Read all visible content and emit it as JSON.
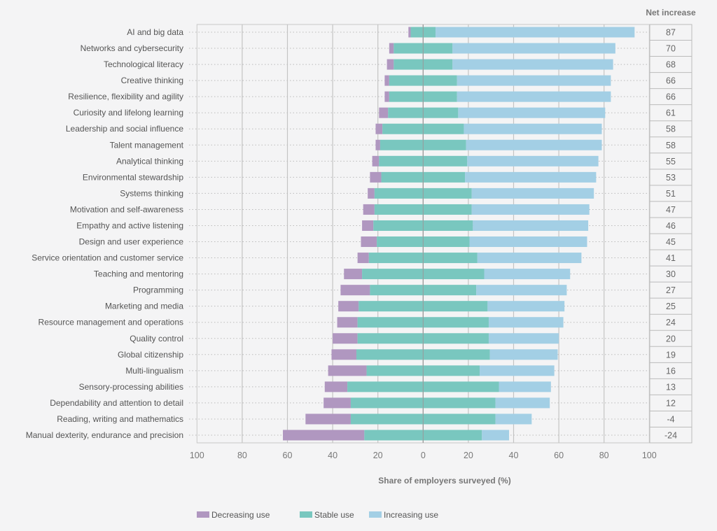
{
  "chart_data": {
    "type": "bar",
    "orientation": "horizontal",
    "stacking": "diverging",
    "xlabel": "Share of employers surveyed (%)",
    "xlim": [
      -100,
      100
    ],
    "xticks": [
      "100",
      "80",
      "60",
      "40",
      "20",
      "0",
      "20",
      "40",
      "60",
      "80",
      "100"
    ],
    "grid": true,
    "legend_position": "bottom",
    "net_header": "Net increase",
    "categories": [
      "AI and big data",
      "Networks and cybersecurity",
      "Technological literacy",
      "Creative thinking",
      "Resilience, flexibility and agility",
      "Curiosity and lifelong learning",
      "Leadership and social influence",
      "Talent management",
      "Analytical thinking",
      "Environmental stewardship",
      "Systems thinking",
      "Motivation and self-awareness",
      "Empathy and active listening",
      "Design and user experience",
      "Service orientation and customer service",
      "Teaching and mentoring",
      "Programming",
      "Marketing and media",
      "Resource management and operations",
      "Quality control",
      "Global citizenship",
      "Multi-lingualism",
      "Sensory-processing abilities",
      "Dependability and attention to detail",
      "Reading, writing and mathematics",
      "Manual dexterity, endurance and precision"
    ],
    "series": [
      {
        "name": "Decreasing use",
        "color": "#b097c0",
        "values": [
          1,
          2,
          3,
          2,
          2,
          4,
          3,
          2,
          3,
          5,
          3,
          5,
          5,
          7,
          5,
          8,
          13,
          9,
          9,
          11,
          11,
          17,
          10,
          12,
          20,
          36
        ]
      },
      {
        "name": "Stable use",
        "color": "#79c7bf",
        "values": [
          11,
          26,
          26,
          30,
          30,
          31,
          36,
          38,
          39,
          37,
          43,
          43,
          44,
          41,
          48,
          54,
          47,
          57,
          58,
          58,
          59,
          50,
          67,
          64,
          64,
          52
        ]
      },
      {
        "name": "Increasing use",
        "color": "#a3cfe5",
        "values": [
          88,
          72,
          71,
          68,
          68,
          65,
          61,
          60,
          58,
          58,
          54,
          52,
          51,
          52,
          46,
          38,
          40,
          34,
          33,
          31,
          30,
          33,
          23,
          24,
          16,
          12
        ]
      }
    ],
    "net_increase": [
      "87",
      "70",
      "68",
      "66",
      "66",
      "61",
      "58",
      "58",
      "55",
      "53",
      "51",
      "47",
      "46",
      "45",
      "41",
      "30",
      "27",
      "25",
      "24",
      "20",
      "19",
      "16",
      "13",
      "12",
      "-4",
      "-24"
    ]
  }
}
